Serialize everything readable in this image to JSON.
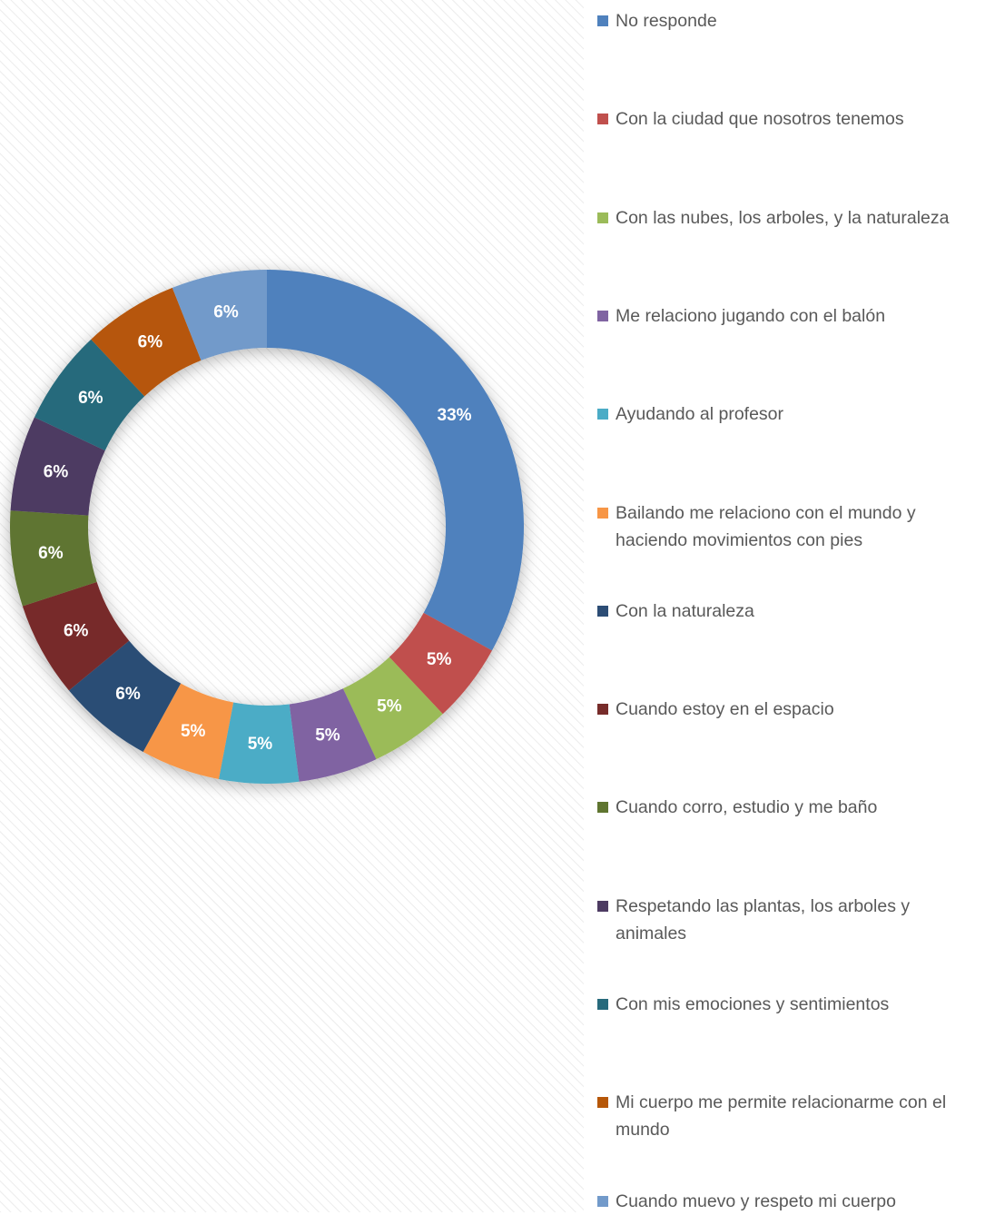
{
  "chart_data": {
    "type": "pie",
    "categories": [
      "No responde",
      "Con la ciudad que nosotros tenemos",
      "Con las nubes, los arboles, y la naturaleza",
      "Me relaciono jugando con el balón",
      "Ayudando al profesor",
      "Bailando me relaciono con el mundo y haciendo movimientos con pies",
      "Con la naturaleza",
      "Cuando estoy en el espacio",
      "Cuando corro, estudio y me baño",
      "Respetando las plantas, los arboles y animales",
      "Con mis emociones y sentimientos",
      "Mi cuerpo me permite relacionarme con el mundo",
      "Cuando muevo y respeto mi cuerpo"
    ],
    "values": [
      33,
      5,
      5,
      5,
      5,
      5,
      6,
      6,
      6,
      6,
      6,
      6,
      6
    ],
    "value_labels": [
      "33%",
      "5%",
      "5%",
      "5%",
      "5%",
      "5%",
      "6%",
      "6%",
      "6%",
      "6%",
      "6%",
      "6%",
      "6%"
    ],
    "colors": [
      "#4f81bd",
      "#c0504d",
      "#9bbb59",
      "#8064a2",
      "#4bacc6",
      "#f79646",
      "#2c4d75",
      "#772c2a",
      "#5f7530",
      "#4d3b62",
      "#276a7c",
      "#b65708",
      "#729aca"
    ],
    "donut": true
  }
}
